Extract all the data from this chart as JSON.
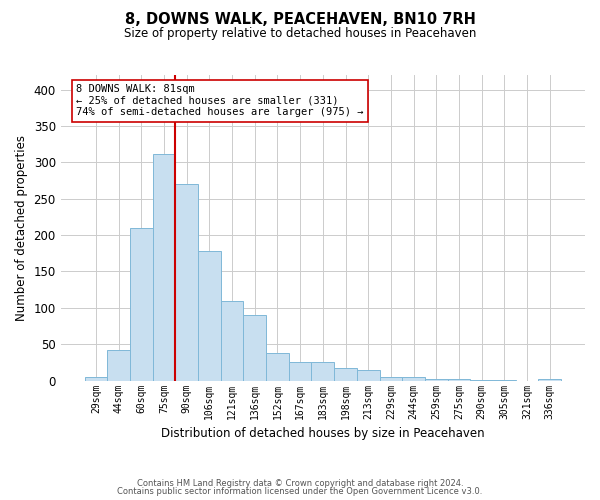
{
  "title": "8, DOWNS WALK, PEACEHAVEN, BN10 7RH",
  "subtitle": "Size of property relative to detached houses in Peacehaven",
  "xlabel": "Distribution of detached houses by size in Peacehaven",
  "ylabel": "Number of detached properties",
  "bar_labels": [
    "29sqm",
    "44sqm",
    "60sqm",
    "75sqm",
    "90sqm",
    "106sqm",
    "121sqm",
    "136sqm",
    "152sqm",
    "167sqm",
    "183sqm",
    "198sqm",
    "213sqm",
    "229sqm",
    "244sqm",
    "259sqm",
    "275sqm",
    "290sqm",
    "305sqm",
    "321sqm",
    "336sqm"
  ],
  "bar_values": [
    5,
    42,
    210,
    311,
    270,
    178,
    110,
    90,
    38,
    25,
    26,
    17,
    14,
    5,
    5,
    2,
    2,
    1,
    1,
    0,
    2
  ],
  "bar_color": "#c8dff0",
  "bar_edge_color": "#7fb8d8",
  "vline_color": "#cc0000",
  "annotation_title": "8 DOWNS WALK: 81sqm",
  "annotation_line1": "← 25% of detached houses are smaller (331)",
  "annotation_line2": "74% of semi-detached houses are larger (975) →",
  "annotation_box_color": "#ffffff",
  "annotation_box_edge": "#cc0000",
  "ylim": [
    0,
    420
  ],
  "yticks": [
    0,
    50,
    100,
    150,
    200,
    250,
    300,
    350,
    400
  ],
  "footer1": "Contains HM Land Registry data © Crown copyright and database right 2024.",
  "footer2": "Contains public sector information licensed under the Open Government Licence v3.0.",
  "bg_color": "#ffffff",
  "grid_color": "#cccccc"
}
